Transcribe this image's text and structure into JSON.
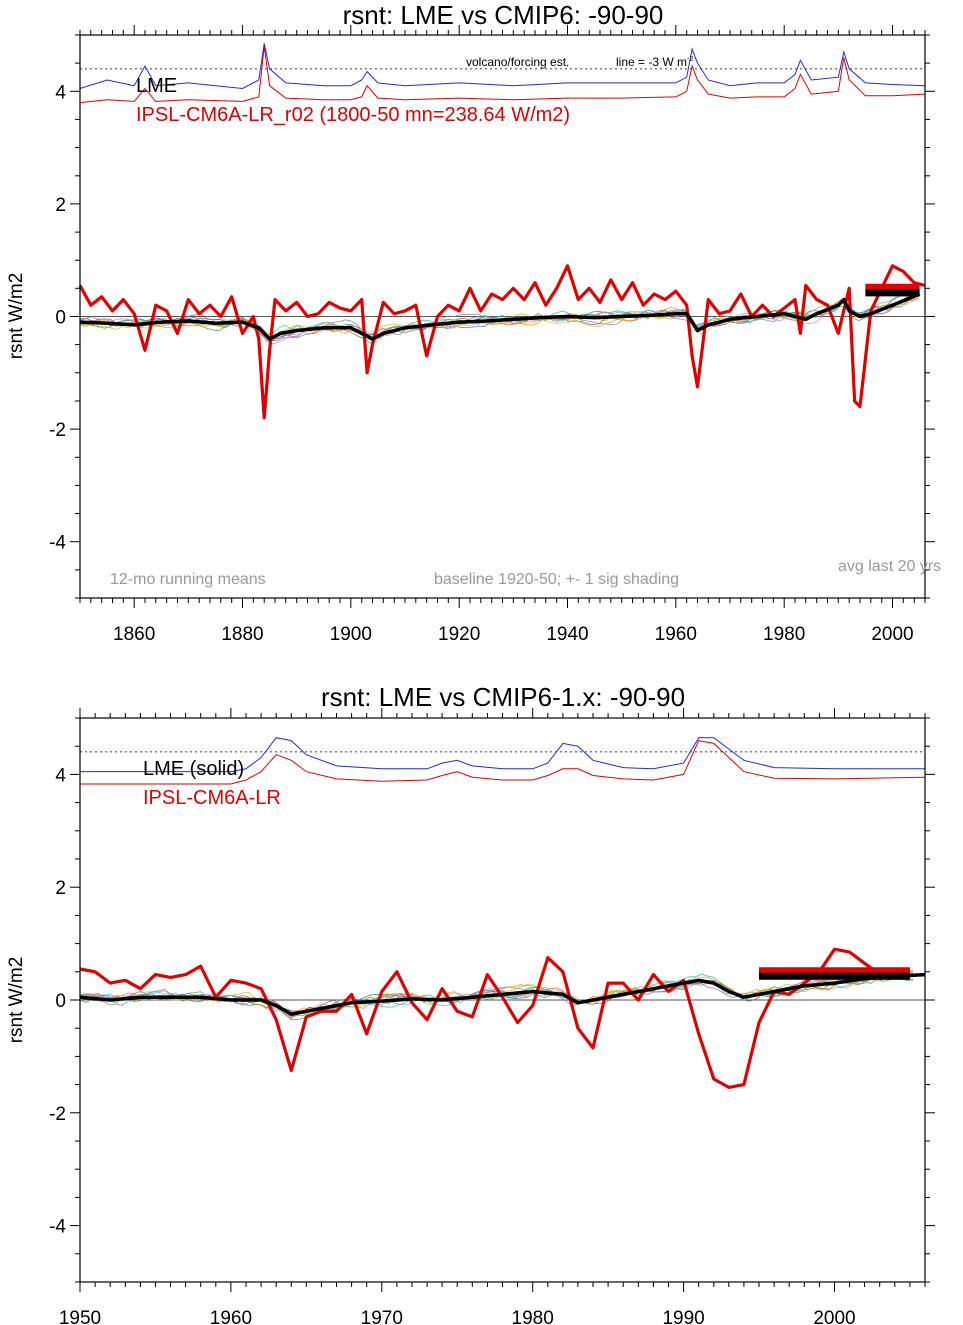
{
  "chart_data": [
    {
      "type": "line",
      "title": "rsnt: LME vs CMIP6: -90-90",
      "ylabel": "rsnt W/m2",
      "xlim": [
        1850,
        2006
      ],
      "ylim": [
        -5,
        5
      ],
      "x_ticks": [
        1860,
        1880,
        1900,
        1920,
        1940,
        1960,
        1980,
        2000
      ],
      "x_tick_labels": [
        "1860",
        "1880",
        "1900",
        "1920",
        "1940",
        "1960",
        "1980",
        "2000"
      ],
      "y_ticks": [
        -4,
        -2,
        0,
        2,
        4
      ],
      "y_tick_labels": [
        "-4",
        "-2",
        "0",
        "2",
        "4"
      ],
      "legend": {
        "lme_label": "LME",
        "model_label": "IPSL-CM6A-LR_r02 (1800-50 mn=238.64 W/m2)"
      },
      "annotations": {
        "volcano": "volcano/forcing est.",
        "line": "line = -3 W m",
        "left_note": "12-mo running means",
        "center_note": "baseline 1920-50; +- 1 sig shading",
        "right_note": "avg last 20 yrs"
      },
      "reference_line_y": 4.4,
      "lme_mean": {
        "x": [
          1850,
          1855,
          1860,
          1865,
          1870,
          1875,
          1880,
          1883,
          1885,
          1887,
          1890,
          1895,
          1900,
          1902,
          1904,
          1906,
          1910,
          1915,
          1920,
          1925,
          1930,
          1935,
          1940,
          1945,
          1950,
          1955,
          1960,
          1962,
          1963,
          1964,
          1966,
          1970,
          1975,
          1980,
          1982,
          1984,
          1986,
          1990,
          1991,
          1992,
          1994,
          1996,
          2000,
          2005
        ],
        "values": [
          -0.1,
          -0.12,
          -0.15,
          -0.1,
          -0.08,
          -0.12,
          -0.1,
          -0.2,
          -0.4,
          -0.3,
          -0.25,
          -0.2,
          -0.2,
          -0.3,
          -0.4,
          -0.3,
          -0.2,
          -0.15,
          -0.1,
          -0.08,
          -0.05,
          -0.02,
          0.0,
          -0.02,
          0.0,
          0.02,
          0.05,
          0.05,
          -0.1,
          -0.25,
          -0.15,
          -0.05,
          0.0,
          0.05,
          0.0,
          -0.05,
          0.05,
          0.2,
          0.3,
          0.1,
          0.0,
          0.05,
          0.2,
          0.4
        ]
      },
      "model": {
        "x": [
          1850,
          1852,
          1854,
          1856,
          1858,
          1860,
          1862,
          1864,
          1866,
          1868,
          1870,
          1872,
          1874,
          1876,
          1878,
          1880,
          1882,
          1883,
          1884,
          1885,
          1886,
          1888,
          1890,
          1892,
          1894,
          1896,
          1898,
          1900,
          1902,
          1903,
          1904,
          1906,
          1908,
          1910,
          1912,
          1914,
          1916,
          1918,
          1920,
          1922,
          1924,
          1926,
          1928,
          1930,
          1932,
          1934,
          1936,
          1938,
          1940,
          1942,
          1944,
          1946,
          1948,
          1950,
          1952,
          1954,
          1956,
          1958,
          1960,
          1962,
          1963,
          1964,
          1966,
          1968,
          1970,
          1972,
          1974,
          1976,
          1978,
          1980,
          1982,
          1983,
          1984,
          1986,
          1988,
          1990,
          1992,
          1993,
          1994,
          1996,
          1998,
          2000,
          2002,
          2004,
          2006
        ],
        "values": [
          0.55,
          0.2,
          0.35,
          0.1,
          0.3,
          0.05,
          -0.6,
          0.2,
          0.1,
          -0.3,
          0.3,
          0.05,
          0.2,
          0.0,
          0.35,
          -0.3,
          0.0,
          -0.4,
          -1.8,
          -0.6,
          0.3,
          0.1,
          0.25,
          0.0,
          0.05,
          0.25,
          0.15,
          0.1,
          0.3,
          -1.0,
          -0.5,
          0.25,
          0.05,
          0.1,
          0.2,
          -0.7,
          0.0,
          0.2,
          0.1,
          0.5,
          0.1,
          0.4,
          0.3,
          0.5,
          0.3,
          0.6,
          0.2,
          0.5,
          0.9,
          0.3,
          0.5,
          0.25,
          0.65,
          0.3,
          0.6,
          0.2,
          0.4,
          0.3,
          0.45,
          0.2,
          -0.7,
          -1.25,
          0.3,
          0.05,
          0.1,
          0.4,
          0.0,
          0.2,
          0.0,
          0.15,
          0.3,
          -0.3,
          0.55,
          0.3,
          0.2,
          -0.3,
          0.5,
          -1.5,
          -1.6,
          0.1,
          0.5,
          0.9,
          0.8,
          0.6,
          0.55
        ]
      },
      "lme_forcing": {
        "x": [
          1850,
          1855,
          1860,
          1862,
          1864,
          1870,
          1880,
          1883,
          1884,
          1885,
          1888,
          1895,
          1900,
          1902,
          1903,
          1905,
          1910,
          1920,
          1930,
          1940,
          1950,
          1960,
          1962,
          1963,
          1964,
          1966,
          1970,
          1975,
          1980,
          1982,
          1983,
          1985,
          1990,
          1991,
          1992,
          1995,
          2000,
          2006
        ],
        "values": [
          4.05,
          4.2,
          4.1,
          4.45,
          4.1,
          4.15,
          4.05,
          4.2,
          4.85,
          4.4,
          4.15,
          4.1,
          4.1,
          4.2,
          4.35,
          4.15,
          4.1,
          4.15,
          4.1,
          4.15,
          4.15,
          4.15,
          4.25,
          4.75,
          4.5,
          4.2,
          4.1,
          4.15,
          4.15,
          4.3,
          4.55,
          4.2,
          4.25,
          4.7,
          4.4,
          4.15,
          4.12,
          4.1
        ]
      },
      "model_forcing": {
        "x": [
          1850,
          1855,
          1860,
          1862,
          1864,
          1870,
          1880,
          1883,
          1884,
          1885,
          1888,
          1895,
          1900,
          1902,
          1903,
          1905,
          1910,
          1920,
          1930,
          1940,
          1950,
          1960,
          1962,
          1963,
          1964,
          1966,
          1970,
          1975,
          1980,
          1982,
          1983,
          1985,
          1990,
          1991,
          1992,
          1995,
          2000,
          2006
        ],
        "values": [
          3.8,
          3.85,
          3.82,
          4.05,
          3.82,
          3.85,
          3.82,
          3.9,
          4.8,
          4.1,
          3.88,
          3.85,
          3.85,
          3.9,
          4.1,
          3.88,
          3.85,
          3.88,
          3.85,
          3.88,
          3.88,
          3.9,
          4.0,
          4.45,
          4.2,
          3.95,
          3.88,
          3.9,
          3.9,
          4.05,
          4.3,
          3.95,
          4.0,
          4.6,
          4.2,
          3.92,
          3.92,
          3.95
        ]
      },
      "avg_last_20": {
        "lme": 0.42,
        "model": 0.52,
        "x_range": [
          1995,
          2005
        ]
      }
    },
    {
      "type": "line",
      "title": "rsnt: LME vs CMIP6-1.x: -90-90",
      "ylabel": "rsnt W/m2",
      "xlim": [
        1950,
        2006
      ],
      "ylim": [
        -5,
        5
      ],
      "x_ticks": [
        1950,
        1960,
        1970,
        1980,
        1990,
        2000
      ],
      "x_tick_labels": [
        "1950",
        "1960",
        "1970",
        "1980",
        "1990",
        "2000"
      ],
      "y_ticks": [
        -4,
        -2,
        0,
        2,
        4
      ],
      "y_tick_labels": [
        "-4",
        "-2",
        "0",
        "2",
        "4"
      ],
      "legend": {
        "lme_label": "LME (solid)",
        "model_label": "IPSL-CM6A-LR"
      },
      "reference_line_y": 4.4,
      "lme_mean": {
        "x": [
          1950,
          1952,
          1954,
          1956,
          1958,
          1960,
          1962,
          1963,
          1964,
          1965,
          1966,
          1968,
          1970,
          1972,
          1974,
          1976,
          1978,
          1980,
          1982,
          1983,
          1984,
          1986,
          1988,
          1990,
          1991,
          1992,
          1993,
          1994,
          1996,
          1998,
          2000,
          2002,
          2004,
          2006
        ],
        "values": [
          0.05,
          0.0,
          0.05,
          0.05,
          0.05,
          0.0,
          0.0,
          -0.1,
          -0.25,
          -0.2,
          -0.15,
          -0.05,
          -0.02,
          0.02,
          0.0,
          0.05,
          0.1,
          0.15,
          0.1,
          -0.05,
          0.0,
          0.1,
          0.2,
          0.3,
          0.35,
          0.3,
          0.15,
          0.05,
          0.15,
          0.25,
          0.3,
          0.38,
          0.42,
          0.45
        ]
      },
      "model": {
        "x": [
          1950,
          1951,
          1952,
          1953,
          1954,
          1955,
          1956,
          1957,
          1958,
          1959,
          1960,
          1961,
          1962,
          1963,
          1964,
          1965,
          1966,
          1967,
          1968,
          1969,
          1970,
          1971,
          1972,
          1973,
          1974,
          1975,
          1976,
          1977,
          1978,
          1979,
          1980,
          1981,
          1982,
          1983,
          1984,
          1985,
          1986,
          1987,
          1988,
          1989,
          1990,
          1991,
          1992,
          1993,
          1994,
          1995,
          1996,
          1997,
          1998,
          1999,
          2000,
          2001,
          2002,
          2003,
          2004,
          2005
        ],
        "values": [
          0.55,
          0.5,
          0.3,
          0.35,
          0.2,
          0.45,
          0.4,
          0.45,
          0.6,
          0.05,
          0.35,
          0.3,
          0.2,
          -0.35,
          -1.25,
          -0.3,
          -0.2,
          -0.2,
          0.1,
          -0.6,
          0.15,
          0.5,
          -0.05,
          -0.35,
          0.2,
          -0.2,
          -0.3,
          0.45,
          0.05,
          -0.4,
          -0.1,
          0.75,
          0.5,
          -0.5,
          -0.85,
          0.3,
          0.3,
          0.0,
          0.45,
          0.15,
          0.35,
          -0.6,
          -1.4,
          -1.55,
          -1.5,
          -0.4,
          0.15,
          0.1,
          0.3,
          0.5,
          0.9,
          0.85,
          0.65,
          0.45,
          0.5,
          0.55
        ]
      },
      "lme_forcing": {
        "x": [
          1950,
          1955,
          1960,
          1961,
          1962,
          1963,
          1964,
          1965,
          1967,
          1970,
          1973,
          1974,
          1975,
          1976,
          1978,
          1980,
          1981,
          1982,
          1983,
          1984,
          1986,
          1988,
          1990,
          1991,
          1992,
          1993,
          1994,
          1996,
          2000,
          2006
        ],
        "values": [
          4.05,
          4.05,
          4.05,
          4.1,
          4.3,
          4.65,
          4.6,
          4.35,
          4.15,
          4.1,
          4.1,
          4.2,
          4.25,
          4.15,
          4.1,
          4.1,
          4.2,
          4.55,
          4.5,
          4.25,
          4.12,
          4.1,
          4.2,
          4.65,
          4.65,
          4.45,
          4.25,
          4.12,
          4.1,
          4.1
        ]
      },
      "model_forcing": {
        "x": [
          1950,
          1955,
          1960,
          1961,
          1962,
          1963,
          1964,
          1965,
          1967,
          1970,
          1973,
          1974,
          1975,
          1976,
          1978,
          1980,
          1981,
          1982,
          1983,
          1984,
          1986,
          1988,
          1990,
          1991,
          1992,
          1993,
          1994,
          1996,
          2000,
          2006
        ],
        "values": [
          3.83,
          3.83,
          3.83,
          3.9,
          4.05,
          4.35,
          4.25,
          4.05,
          3.92,
          3.88,
          3.9,
          3.98,
          4.05,
          3.95,
          3.9,
          3.9,
          3.98,
          4.1,
          4.1,
          3.98,
          3.92,
          3.9,
          4.0,
          4.6,
          4.55,
          4.3,
          4.05,
          3.93,
          3.92,
          3.95
        ]
      },
      "avg_last_20": {
        "lme": 0.42,
        "model": 0.52,
        "x_range": [
          1995,
          2005
        ]
      }
    }
  ],
  "colors": {
    "model": "#e00000",
    "lme_forcing": "#1f2fd0",
    "model_forcing": "#e00000",
    "lme_mean": "#000000",
    "zero_line": "#555555",
    "reference_line": "#555555",
    "note_gray": "#999999",
    "ensemble": [
      "#1f77b4",
      "#2ca02c",
      "#9467bd",
      "#8c564b",
      "#17becf",
      "#bcbd22",
      "#7f7f7f",
      "#ff7f0e",
      "#e377c2",
      "#d4b000"
    ]
  }
}
